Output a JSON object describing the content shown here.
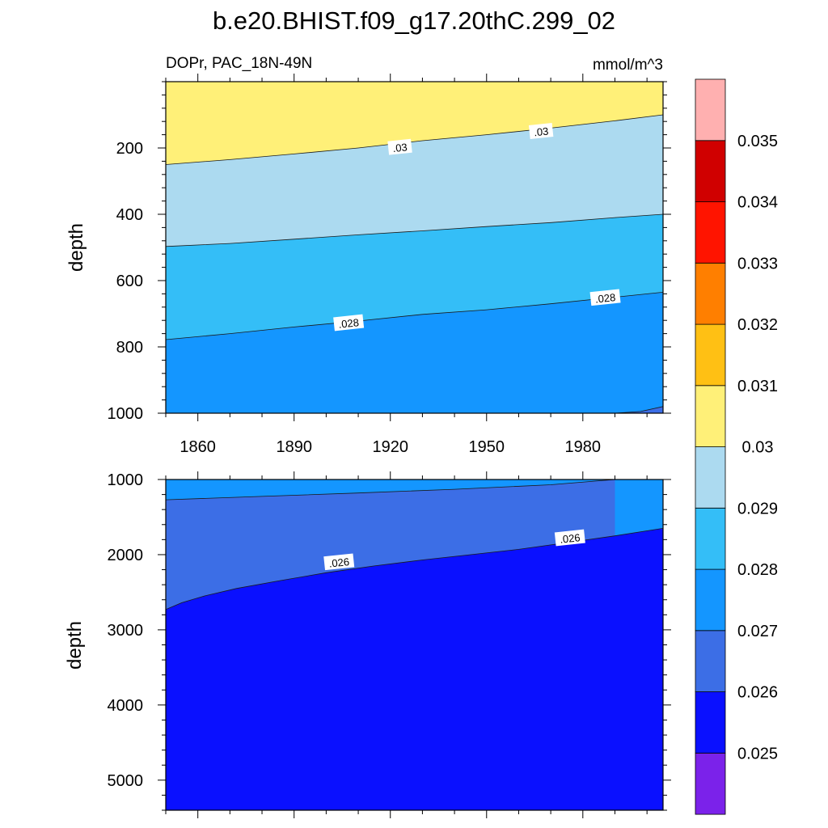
{
  "title": "b.e20.BHIST.f09_g17.20thC.299_02",
  "chart_data": {
    "type": "heatmap",
    "title": "b.e20.BHIST.f09_g17.20thC.299_02",
    "subtitle_left": "DOPr, PAC_18N-49N",
    "subtitle_right": "mmol/m^3",
    "units": "mmol/m^3",
    "x_range": [
      1850,
      2005
    ],
    "colorbar": {
      "levels": [
        "0.025",
        "0.026",
        "0.027",
        "0.028",
        "0.029",
        "0.03",
        "0.031",
        "0.032",
        "0.033",
        "0.034",
        "0.035"
      ],
      "colors": [
        "#7b22ea",
        "#0a10ff",
        "#3c6ee6",
        "#1496ff",
        "#34bef7",
        "#acdaf0",
        "#fff078",
        "#ffc014",
        "#ff7f00",
        "#ff1400",
        "#d00000",
        "#ffb0b0"
      ]
    },
    "panels": [
      {
        "name": "upper",
        "ylabel": "depth",
        "y_range": [
          1000,
          0
        ],
        "x_tick_labels": [
          "1860",
          "1890",
          "1920",
          "1950",
          "1980"
        ],
        "x_ticks": [
          1860,
          1890,
          1920,
          1950,
          1980
        ],
        "y_tick_labels": [
          "200",
          "400",
          "600",
          "800",
          "1000"
        ],
        "y_ticks": [
          200,
          400,
          600,
          800,
          1000
        ],
        "contours": [
          {
            "level": 0.03,
            "years": [
              1850,
              1870,
              1890,
              1910,
              1930,
              1950,
              1970,
              1990,
              2005
            ],
            "depths": [
              250,
              235,
              218,
              200,
              178,
              160,
              140,
              118,
              100
            ]
          },
          {
            "level": 0.029,
            "years": [
              1850,
              1870,
              1890,
              1910,
              1930,
              1950,
              1970,
              1990,
              2005
            ],
            "depths": [
              497,
              488,
              475,
              462,
              450,
              437,
              425,
              410,
              400
            ]
          },
          {
            "level": 0.028,
            "years": [
              1850,
              1870,
              1890,
              1910,
              1930,
              1950,
              1970,
              1990,
              2005
            ],
            "depths": [
              778,
              760,
              740,
              722,
              702,
              688,
              670,
              650,
              635
            ]
          },
          {
            "level": 0.027,
            "years": [
              1990,
              1998,
              2005
            ],
            "depths": [
              1000,
              995,
              980
            ]
          }
        ],
        "contour_labels": [
          {
            "text": ".03",
            "year": 1923,
            "depth": 198
          },
          {
            "text": ".03",
            "year": 1967,
            "depth": 150
          },
          {
            "text": ".028",
            "year": 1907,
            "depth": 728
          },
          {
            "text": ".028",
            "year": 1987,
            "depth": 652
          }
        ]
      },
      {
        "name": "lower",
        "ylabel": "depth",
        "y_range": [
          5400,
          1000
        ],
        "x_ticks": [
          1860,
          1890,
          1920,
          1950,
          1980
        ],
        "y_tick_labels": [
          "1000",
          "2000",
          "3000",
          "4000",
          "5000"
        ],
        "y_ticks": [
          1000,
          2000,
          3000,
          4000,
          5000
        ],
        "contours": [
          {
            "level": 0.027,
            "years": [
              1850,
              1880,
              1910,
              1940,
              1970,
              1990
            ],
            "depths": [
              1270,
              1225,
              1180,
              1130,
              1070,
              1000
            ]
          },
          {
            "level": 0.026,
            "years": [
              1850,
              1855,
              1862,
              1872,
              1885,
              1900,
              1915,
              1930,
              1945,
              1960,
              1975,
              1990,
              2005
            ],
            "depths": [
              2730,
              2640,
              2550,
              2450,
              2350,
              2240,
              2150,
              2070,
              2000,
              1930,
              1840,
              1750,
              1650
            ]
          }
        ],
        "contour_labels": [
          {
            "text": ".026",
            "year": 1904,
            "depth": 2100
          },
          {
            "text": ".026",
            "year": 1976,
            "depth": 1780
          }
        ]
      }
    ]
  }
}
